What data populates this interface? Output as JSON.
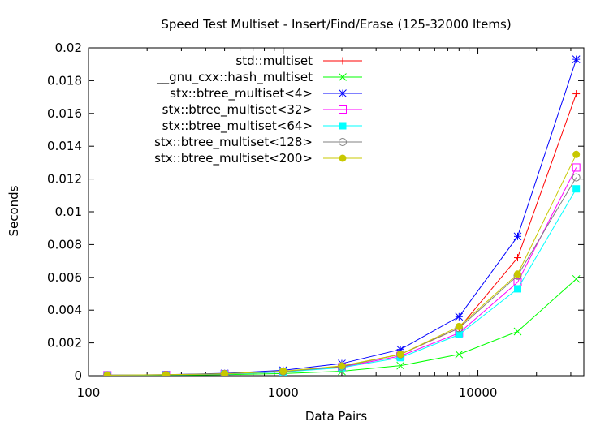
{
  "chart_data": {
    "type": "line",
    "title": "Speed Test Multiset - Insert/Find/Erase (125-32000 Items)",
    "xlabel": "Data Pairs",
    "ylabel": "Seconds",
    "x_scale": "log",
    "xlim": [
      100,
      35000
    ],
    "ylim": [
      0,
      0.02
    ],
    "x_ticks": [
      100,
      1000,
      10000
    ],
    "x_tick_labels": [
      "100",
      "1000",
      "10000"
    ],
    "y_ticks": [
      0,
      0.002,
      0.004,
      0.006,
      0.008,
      0.01,
      0.012,
      0.014,
      0.016,
      0.018,
      0.02
    ],
    "y_tick_labels": [
      "0",
      "0.002",
      "0.004",
      "0.006",
      "0.008",
      "0.01",
      "0.012",
      "0.014",
      "0.016",
      "0.018",
      "0.02"
    ],
    "legend_position": "top-left",
    "grid": false,
    "x": [
      125,
      250,
      500,
      1000,
      2000,
      4000,
      8000,
      16000,
      32000
    ],
    "series": [
      {
        "name": "std::multiset",
        "color": "#ff0000",
        "marker": "plus",
        "values": [
          3e-05,
          5e-05,
          0.00011,
          0.00025,
          0.00058,
          0.0013,
          0.0029,
          0.0072,
          0.0172
        ]
      },
      {
        "name": "__gnu_cxx::hash_multiset",
        "color": "#00ff00",
        "marker": "cross",
        "values": [
          2e-05,
          3e-05,
          6e-05,
          0.00013,
          0.00027,
          0.00061,
          0.0013,
          0.0027,
          0.0059
        ]
      },
      {
        "name": "stx::btree_multiset<4>",
        "color": "#0000ff",
        "marker": "star",
        "values": [
          3e-05,
          6e-05,
          0.00014,
          0.00033,
          0.00074,
          0.0016,
          0.0036,
          0.0085,
          0.0193
        ]
      },
      {
        "name": "stx::btree_multiset<32>",
        "color": "#ff00ff",
        "marker": "open-square",
        "values": [
          3e-05,
          5e-05,
          0.0001,
          0.00023,
          0.00052,
          0.0012,
          0.0026,
          0.0057,
          0.0127
        ]
      },
      {
        "name": "stx::btree_multiset<64>",
        "color": "#00ffff",
        "marker": "filled-square",
        "values": [
          3e-05,
          5e-05,
          0.0001,
          0.00022,
          0.00049,
          0.0011,
          0.0025,
          0.0053,
          0.0114
        ]
      },
      {
        "name": "stx::btree_multiset<128>",
        "color": "#808080",
        "marker": "open-circle",
        "values": [
          3e-05,
          5e-05,
          0.00011,
          0.00025,
          0.00055,
          0.0013,
          0.0029,
          0.0061,
          0.0121
        ]
      },
      {
        "name": "stx::btree_multiset<200>",
        "color": "#c8c800",
        "marker": "filled-circle",
        "values": [
          3e-05,
          6e-05,
          0.00012,
          0.00027,
          0.0006,
          0.0013,
          0.003,
          0.0062,
          0.0135
        ]
      }
    ]
  }
}
